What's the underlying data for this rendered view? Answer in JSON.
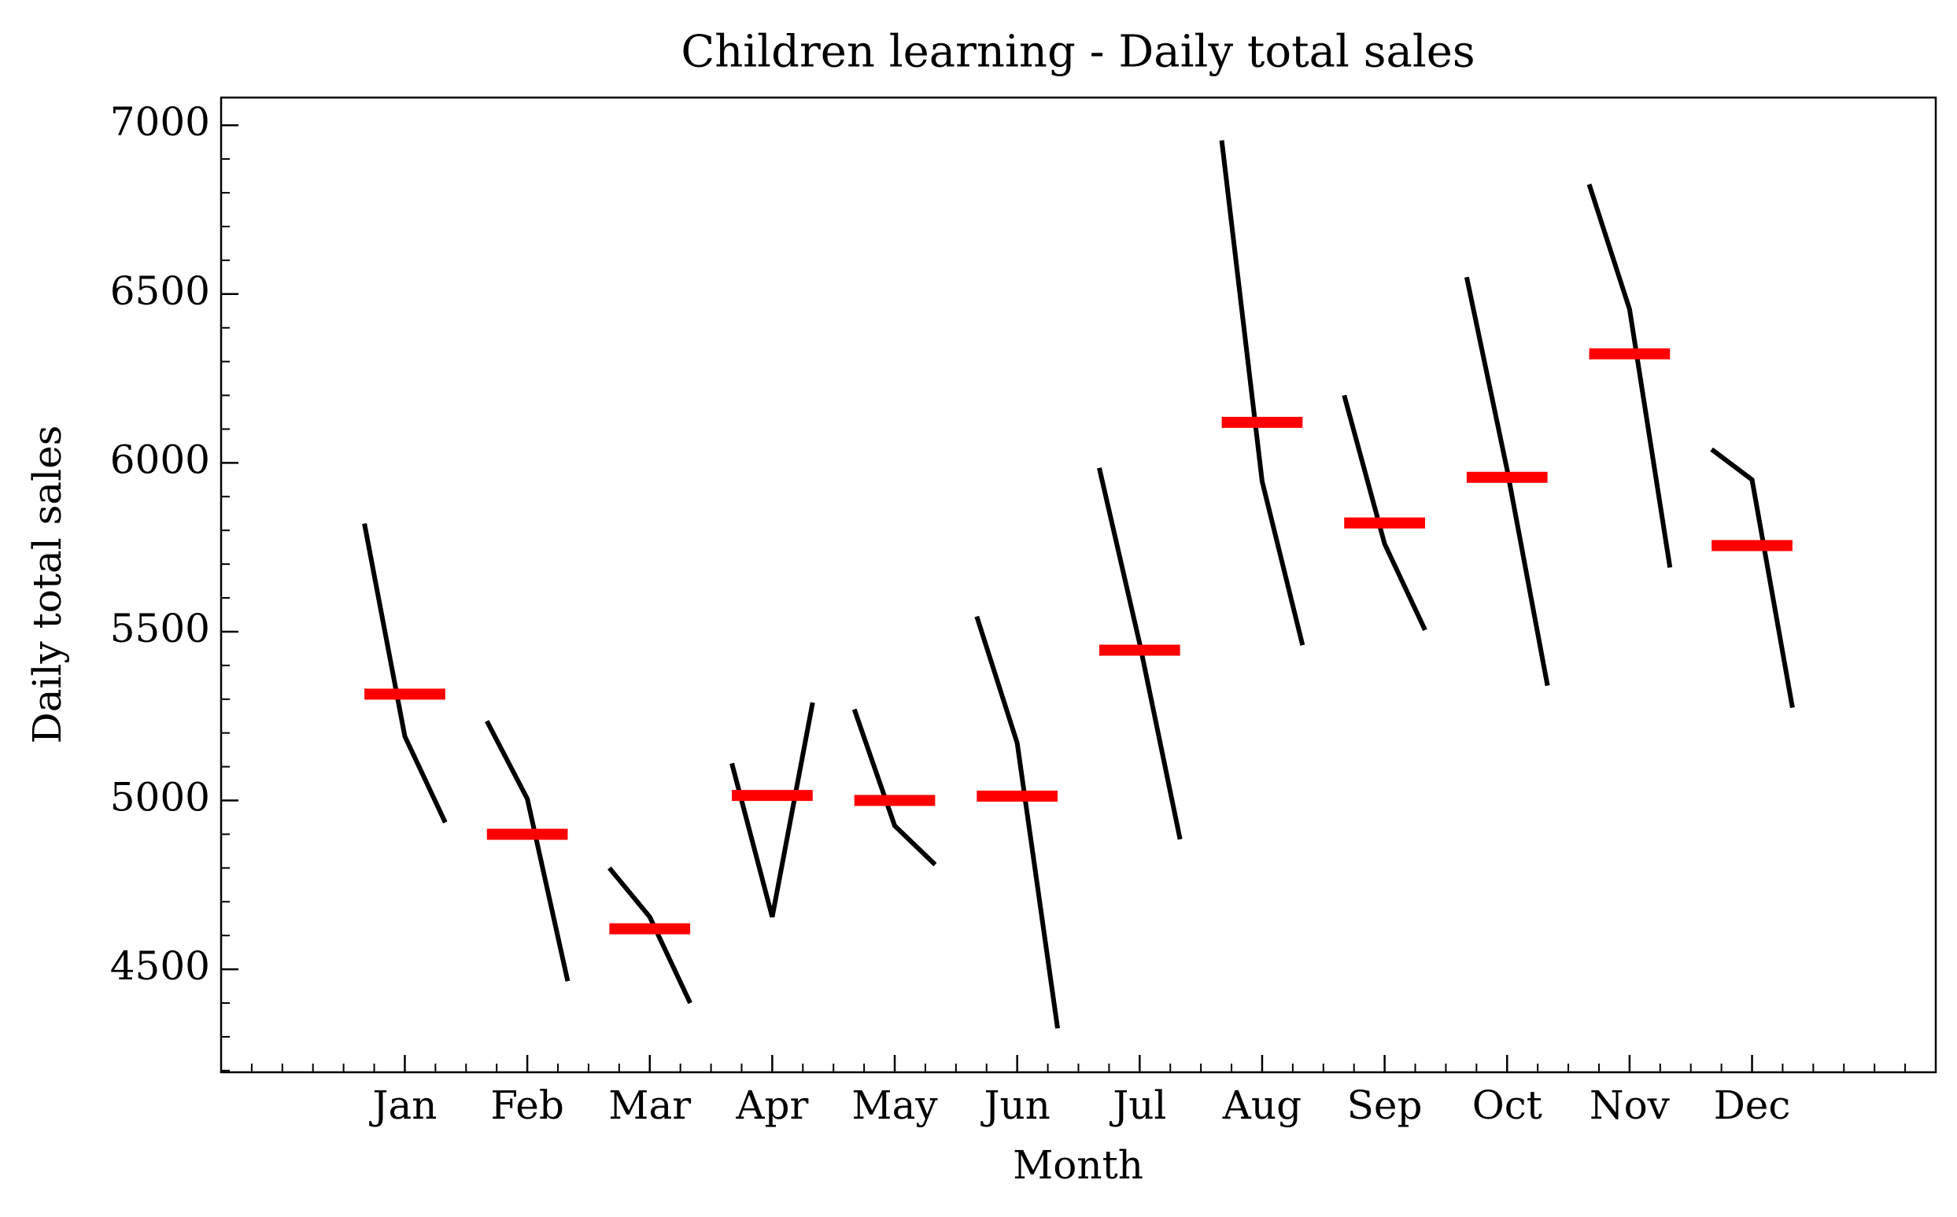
{
  "chart_data": {
    "type": "monthplot",
    "title": "Children learning - Daily total sales",
    "x_label": "Month",
    "y_label": "Daily total sales",
    "categories": [
      "Jan",
      "Feb",
      "Mar",
      "Apr",
      "May",
      "Jun",
      "Jul",
      "Aug",
      "Sep",
      "Oct",
      "Nov",
      "Dec"
    ],
    "values": [
      [
        5820,
        5190,
        4935
      ],
      [
        5235,
        5005,
        4465
      ],
      [
        4800,
        4655,
        4400
      ],
      [
        5110,
        4655,
        5290
      ],
      [
        5270,
        4925,
        4810
      ],
      [
        5545,
        5170,
        4325
      ],
      [
        5985,
        5465,
        4885
      ],
      [
        6955,
        5945,
        5460
      ],
      [
        6200,
        5760,
        5505
      ],
      [
        6550,
        5980,
        5340
      ],
      [
        6825,
        6455,
        5690
      ],
      [
        6040,
        5950,
        5275
      ]
    ],
    "means": [
      5315,
      4900,
      4620,
      5015,
      5000,
      5013,
      5445,
      6120,
      5822,
      5957,
      6323,
      5755
    ],
    "color": "#000000",
    "mean_color": "#ff0000",
    "ylim": [
      4195,
      7082
    ],
    "yticks": [
      4500,
      5000,
      5500,
      6000,
      6500,
      7000
    ],
    "grid": false
  }
}
